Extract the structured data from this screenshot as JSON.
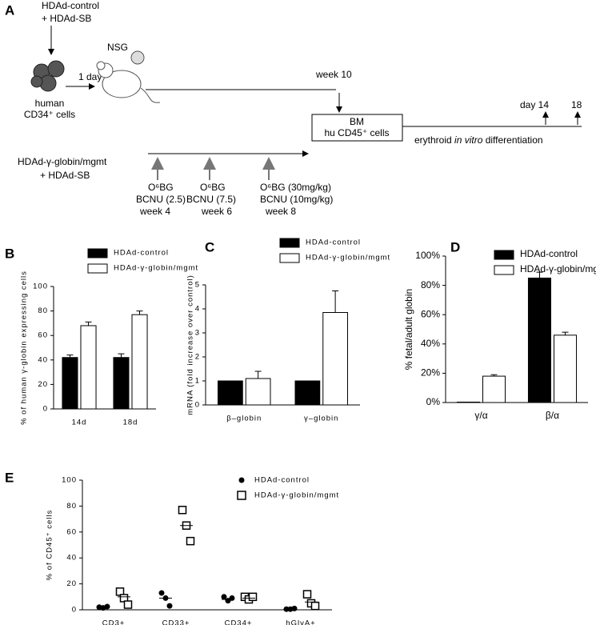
{
  "diagram": {
    "panel": "A",
    "control_vector": "HDAd-control",
    "control_sb": "+ HDAd-SB",
    "cells": [
      "human",
      "CD34⁺ cells"
    ],
    "one_day": "1 day",
    "mouse": "NSG",
    "week10": "week 10",
    "bm_box": [
      "BM",
      "hu CD45⁺ cells"
    ],
    "day14": "day 14",
    "day18": "18",
    "differentiation": [
      "erythroid ",
      "in vitro",
      " differentiation"
    ],
    "gamma_vector": "HDAd-γ-globin/mgmt",
    "gamma_sb": "+ HDAd-SB",
    "treatments": [
      [
        "O⁶BG",
        "BCNU (2.5)",
        "week 4"
      ],
      [
        "O⁶BG",
        "BCNU (7.5)",
        "week 6"
      ],
      [
        "O⁶BG (30mg/kg)",
        "BCNU (10mg/kg)",
        "week 8"
      ]
    ]
  },
  "chart_data": [
    {
      "type": "bar",
      "panel": "B",
      "ylabel": "% of human γ-globin expressing cells",
      "categories": [
        "14d",
        "18d"
      ],
      "series": [
        {
          "name": "HDAd-control",
          "color": "#000000",
          "values": [
            42,
            42
          ],
          "errors": [
            2,
            3
          ]
        },
        {
          "name": "HDAd-γ-globin/mgmt",
          "color": "#ffffff",
          "values": [
            68,
            77
          ],
          "errors": [
            3,
            3
          ]
        }
      ],
      "ylim": [
        0,
        100
      ],
      "yticks": [
        0,
        20,
        40,
        60,
        80,
        100
      ]
    },
    {
      "type": "bar",
      "panel": "C",
      "ylabel": "mRNA (fold increase over control)",
      "categories": [
        "β–globin",
        "γ–globin"
      ],
      "series": [
        {
          "name": "HDAd-control",
          "color": "#000000",
          "values": [
            1,
            1
          ],
          "errors": [
            0,
            0
          ]
        },
        {
          "name": "HDAd-γ-globin/mgmt",
          "color": "#ffffff",
          "values": [
            1.1,
            3.85
          ],
          "errors": [
            0.3,
            0.9
          ]
        }
      ],
      "ylim": [
        0,
        5
      ],
      "yticks": [
        0,
        1,
        2,
        3,
        4,
        5
      ]
    },
    {
      "type": "bar",
      "panel": "D",
      "ylabel": "% fetal/adult globin",
      "categories": [
        "γ/α",
        "β/α"
      ],
      "series": [
        {
          "name": "HDAd-control",
          "color": "#000000",
          "values": [
            0.3,
            85
          ],
          "errors": [
            0,
            4
          ]
        },
        {
          "name": "HDAd-γ-globin/mgmt",
          "color": "#ffffff",
          "values": [
            18,
            46
          ],
          "errors": [
            1,
            2
          ]
        }
      ],
      "ylim": [
        0,
        100
      ],
      "yticks": [
        {
          "value": 0,
          "label": "0%"
        },
        {
          "value": 20,
          "label": "20%"
        },
        {
          "value": 40,
          "label": "40%"
        },
        {
          "value": 60,
          "label": "60%"
        },
        {
          "value": 80,
          "label": "80%"
        },
        {
          "value": 100,
          "label": "100%"
        }
      ]
    },
    {
      "type": "dot",
      "panel": "E",
      "ylabel": "% of CD45⁺ cells",
      "categories": [
        "CD3+",
        "CD33+",
        "CD34+",
        "hGlyA+"
      ],
      "series": [
        {
          "name": "HDAd-control",
          "marker": "circle",
          "color": "#000000",
          "values": [
            [
              2,
              1.5,
              2.5
            ],
            [
              13,
              9,
              3
            ],
            [
              10,
              7,
              9
            ],
            [
              0.5,
              0.5,
              1
            ]
          ],
          "means": [
            2,
            9,
            8,
            0.7
          ]
        },
        {
          "name": "HDAd-γ-globin/mgmt",
          "marker": "square",
          "color": "#ffffff",
          "values": [
            [
              14,
              9,
              4
            ],
            [
              77,
              65,
              53
            ],
            [
              10,
              8,
              10
            ],
            [
              12,
              5,
              3
            ]
          ],
          "means": [
            10,
            65,
            9,
            6
          ]
        }
      ],
      "ylim": [
        0,
        100
      ],
      "yticks": [
        0,
        20,
        40,
        60,
        80,
        100
      ]
    }
  ]
}
